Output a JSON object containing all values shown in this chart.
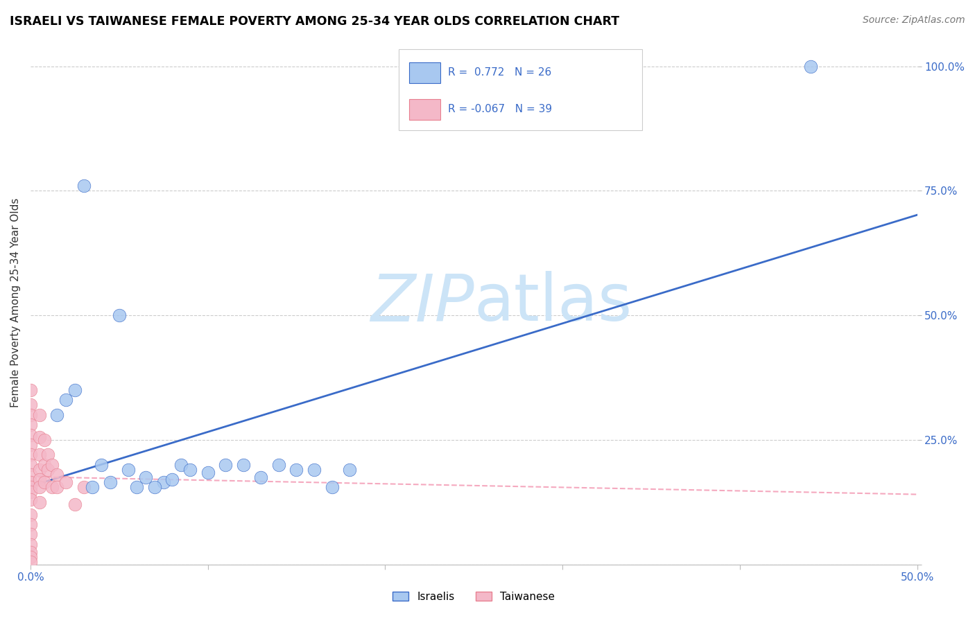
{
  "title": "ISRAELI VS TAIWANESE FEMALE POVERTY AMONG 25-34 YEAR OLDS CORRELATION CHART",
  "source": "Source: ZipAtlas.com",
  "ylabel": "Female Poverty Among 25-34 Year Olds",
  "xlim": [
    0.0,
    0.5
  ],
  "ylim": [
    0.0,
    1.05
  ],
  "R_israeli": 0.772,
  "N_israeli": 26,
  "R_taiwanese": -0.067,
  "N_taiwanese": 39,
  "color_israeli": "#a8c8f0",
  "color_taiwanese": "#f4b8c8",
  "line_color_israeli": "#3a6bc8",
  "line_color_taiwanese": "#f4a0b8",
  "watermark_color": "#cce4f7",
  "israeli_x": [
    0.44,
    0.03,
    0.05,
    0.025,
    0.02,
    0.015,
    0.04,
    0.055,
    0.065,
    0.075,
    0.085,
    0.09,
    0.1,
    0.11,
    0.12,
    0.13,
    0.14,
    0.15,
    0.16,
    0.17,
    0.08,
    0.07,
    0.06,
    0.035,
    0.045,
    0.18
  ],
  "israeli_y": [
    1.0,
    0.76,
    0.5,
    0.35,
    0.33,
    0.3,
    0.2,
    0.19,
    0.175,
    0.165,
    0.2,
    0.19,
    0.185,
    0.2,
    0.2,
    0.175,
    0.2,
    0.19,
    0.19,
    0.155,
    0.17,
    0.155,
    0.155,
    0.155,
    0.165,
    0.19
  ],
  "taiwanese_x": [
    0.0,
    0.0,
    0.0,
    0.0,
    0.0,
    0.0,
    0.0,
    0.0,
    0.0,
    0.0,
    0.0,
    0.0,
    0.0,
    0.0,
    0.0,
    0.0,
    0.0,
    0.0,
    0.0,
    0.0,
    0.005,
    0.005,
    0.005,
    0.005,
    0.005,
    0.005,
    0.005,
    0.008,
    0.008,
    0.008,
    0.01,
    0.01,
    0.012,
    0.012,
    0.015,
    0.015,
    0.02,
    0.025,
    0.03
  ],
  "taiwanese_y": [
    0.35,
    0.32,
    0.3,
    0.28,
    0.26,
    0.24,
    0.22,
    0.2,
    0.18,
    0.165,
    0.155,
    0.145,
    0.13,
    0.1,
    0.08,
    0.06,
    0.04,
    0.025,
    0.015,
    0.005,
    0.3,
    0.255,
    0.22,
    0.19,
    0.17,
    0.155,
    0.125,
    0.25,
    0.2,
    0.165,
    0.22,
    0.19,
    0.2,
    0.155,
    0.18,
    0.155,
    0.165,
    0.12,
    0.155
  ]
}
